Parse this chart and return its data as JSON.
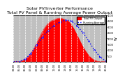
{
  "title": "Solar PV/Inverter Performance\nTotal PV Panel & Running Average Power Output",
  "title_fontsize": 4.5,
  "bg_color": "#ffffff",
  "plot_bg_color": "#ffffff",
  "ylabel_right": "W",
  "ylim": [
    0,
    4000
  ],
  "yticks": [
    500,
    1000,
    1500,
    2000,
    2500,
    3000,
    3500,
    4000
  ],
  "pv_color": "#ff0000",
  "avg_color": "#0000ff",
  "noon_color": "#ffffff",
  "grid_color": "#ffffff",
  "legend_pv": "Total PV Output",
  "legend_avg": "Running Average",
  "pv_data_x": [
    4,
    4.5,
    5,
    5.5,
    6,
    6.5,
    7,
    7.5,
    8,
    8.5,
    9,
    9.5,
    10,
    10.5,
    11,
    11.5,
    12,
    12.5,
    13,
    13.5,
    14,
    14.5,
    15,
    15.5,
    16,
    16.5,
    17,
    17.5,
    18,
    18.5,
    19,
    19.5,
    20
  ],
  "pv_data_y": [
    0,
    5,
    30,
    80,
    200,
    400,
    700,
    1100,
    1600,
    2100,
    2600,
    3000,
    3300,
    3500,
    3600,
    3700,
    3750,
    3700,
    3600,
    3500,
    3200,
    2800,
    2300,
    1800,
    1300,
    900,
    550,
    300,
    120,
    40,
    10,
    2,
    0
  ],
  "avg_data_x": [
    4,
    5,
    6,
    7,
    8,
    9,
    10,
    11,
    12,
    13,
    14,
    15,
    16,
    17,
    18,
    19,
    20
  ],
  "avg_data_y": [
    0,
    15,
    200,
    700,
    1400,
    2100,
    2700,
    3100,
    3400,
    3600,
    3500,
    3100,
    2500,
    1800,
    1000,
    400,
    50
  ],
  "noon_x": 12,
  "xtick_labels": [
    "04:00",
    "05:00",
    "06:00",
    "07:00",
    "08:00",
    "09:00",
    "10:00",
    "11:00",
    "12:00",
    "13:00",
    "14:00",
    "15:00",
    "16:00",
    "17:00",
    "18:00",
    "19:00",
    "20:00"
  ],
  "xtick_positions": [
    4,
    5,
    6,
    7,
    8,
    9,
    10,
    11,
    12,
    13,
    14,
    15,
    16,
    17,
    18,
    19,
    20
  ]
}
